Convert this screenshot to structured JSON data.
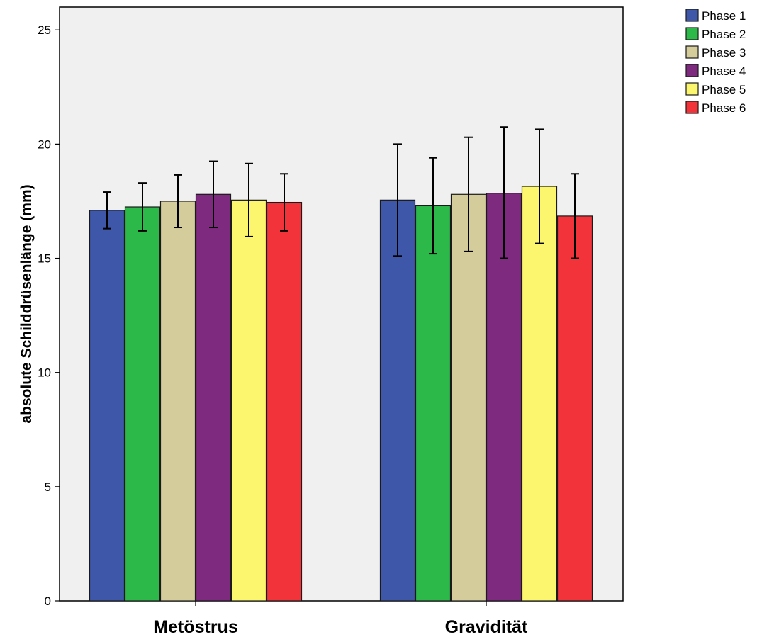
{
  "chart_data": {
    "type": "bar",
    "ylabel": "absolute Schilddrüsenlänge (mm)",
    "xlabel": "",
    "categories": [
      "Metöstrus",
      "Gravidität"
    ],
    "ylim": [
      0,
      26
    ],
    "yticks": [
      0,
      5,
      10,
      15,
      20,
      25
    ],
    "grid": false,
    "legend_position": "top-right",
    "error_bars": true,
    "series": [
      {
        "name": "Phase 1",
        "color": "#3f57a8",
        "values": [
          17.1,
          17.55
        ],
        "err_low": [
          16.3,
          15.1
        ],
        "err_high": [
          17.9,
          20.0
        ]
      },
      {
        "name": "Phase 2",
        "color": "#2db84a",
        "values": [
          17.25,
          17.3
        ],
        "err_low": [
          16.2,
          15.2
        ],
        "err_high": [
          18.3,
          19.4
        ]
      },
      {
        "name": "Phase 3",
        "color": "#d4cc9a",
        "values": [
          17.5,
          17.8
        ],
        "err_low": [
          16.35,
          15.3
        ],
        "err_high": [
          18.65,
          20.3
        ]
      },
      {
        "name": "Phase 4",
        "color": "#7d2a7f",
        "values": [
          17.8,
          17.85
        ],
        "err_low": [
          16.35,
          15.0
        ],
        "err_high": [
          19.25,
          20.75
        ]
      },
      {
        "name": "Phase 5",
        "color": "#fcf66e",
        "values": [
          17.55,
          18.15
        ],
        "err_low": [
          15.95,
          15.65
        ],
        "err_high": [
          19.15,
          20.65
        ]
      },
      {
        "name": "Phase 6",
        "color": "#f2333a",
        "values": [
          17.45,
          16.85
        ],
        "err_low": [
          16.2,
          15.0
        ],
        "err_high": [
          18.7,
          18.7
        ]
      }
    ]
  }
}
